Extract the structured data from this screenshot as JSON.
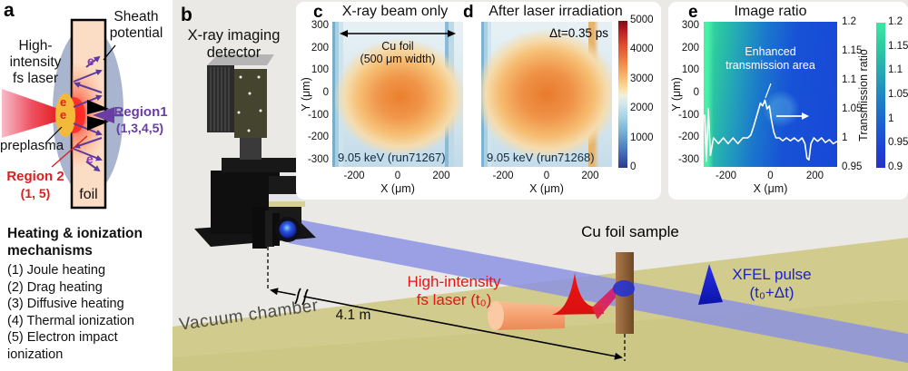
{
  "colors": {
    "laser_red": "#e01818",
    "xfel_blue": "#1a22cc",
    "region1_purple": "#6a3da6",
    "region2_red": "#d92020",
    "floor_khaki": "#d2cb8e",
    "beam_periwinkle": "#8a90e4",
    "scene_gray": "#eae9e6"
  },
  "panel_a": {
    "letter": "a",
    "laser_label": "High-\nintensity\nfs laser",
    "sheath_label": "Sheath\npotential",
    "region1_label": "Region1",
    "region1_sub": "(1,3,4,5)",
    "preplasma_label": "preplasma",
    "region2_label": "Region 2",
    "region2_sub": "(1, 5)",
    "foil_label": "foil",
    "electron_symbol": "e",
    "mechanisms_title": "Heating & ionization\nmechanisms",
    "mechanisms": [
      "(1) Joule heating",
      "(2) Drag heating",
      "(3) Diffusive heating",
      "(4) Thermal ionization",
      "(5) Electron impact ionization"
    ]
  },
  "panel_b": {
    "letter": "b",
    "detector_label": "X-ray imaging\ndetector",
    "vacuum_label": "Vacuum chamber",
    "distance_label": "4.1 m",
    "laser_label": "High-intensity\nfs laser (t₀)",
    "foil_label": "Cu foil sample",
    "xfel_label": "XFEL pulse\n(t₀+Δt)"
  },
  "panel_c": {
    "letter": "c",
    "title": "X-ray beam only",
    "foil_note_line1": "Cu foil",
    "foil_note_line2": "(500 μm width)",
    "run_label": "9.05 keV  (run71267)",
    "xlabel": "X (μm)",
    "ylabel": "Y (μm)"
  },
  "panel_d": {
    "letter": "d",
    "title": "After laser irradiation",
    "delay_label": "Δt=0.35 ps",
    "run_label": "9.05 keV  (run71268)",
    "xlabel": "X (μm)"
  },
  "panel_e": {
    "letter": "e",
    "title": "Image ratio",
    "annotation": "Enhanced\ntransmission area",
    "right_axis_label": "Transmission ratio",
    "xlabel": "X (μm)",
    "ylabel": "Y (μm)"
  },
  "chart_data": [
    {
      "id": "c",
      "type": "heatmap",
      "title": "X-ray beam only",
      "xlabel": "X (μm)",
      "ylabel": "Y (μm)",
      "xlim": [
        -300,
        300
      ],
      "ylim": [
        -300,
        300
      ],
      "xticks": [
        -200,
        0,
        200
      ],
      "yticks": [
        300,
        200,
        100,
        0,
        -100,
        -200,
        -300
      ],
      "value_range": [
        0,
        5000
      ],
      "colorbar_ticks": [
        5000,
        4000,
        3000,
        2000,
        1000,
        0
      ],
      "annotations": [
        "Cu foil (500 μm width)",
        "9.05 keV  (run71267)"
      ],
      "summary": "X-ray beam profile: warm high-count blob (~3500-4500) centered near (0,-50) spanning roughly ±250 μm; cool blue vertical bands at the Cu foil edges near x = -250 and x = +230 μm; background ~1500-2500 counts."
    },
    {
      "id": "d",
      "type": "heatmap",
      "title": "After laser irradiation",
      "xlabel": "X (μm)",
      "ylabel": "Y (μm)",
      "xlim": [
        -300,
        300
      ],
      "ylim": [
        -300,
        300
      ],
      "xticks": [
        -200,
        0,
        200
      ],
      "yticks": [
        300,
        200,
        100,
        0,
        -100,
        -200,
        -300
      ],
      "value_range": [
        0,
        5000
      ],
      "colorbar_ticks": [
        5000,
        4000,
        3000,
        2000,
        1000,
        0
      ],
      "annotations": [
        "Δt=0.35 ps",
        "9.05 keV  (run71268)"
      ],
      "summary": "Same beam viewed 0.35 ps after laser irradiation; warm blob slightly broader, foil edge bands still visible."
    },
    {
      "id": "e",
      "type": "heatmap",
      "title": "Image ratio",
      "xlabel": "X (μm)",
      "ylabel": "Y (μm)",
      "xlim": [
        -300,
        300
      ],
      "ylim": [
        -300,
        300
      ],
      "xticks": [
        -200,
        0,
        200
      ],
      "yticks": [
        300,
        200,
        100,
        0,
        -100,
        -200,
        -300
      ],
      "value_range": [
        0.9,
        1.2
      ],
      "colorbar_label": "Transmission ratio",
      "colorbar_ticks": [
        1.2,
        1.15,
        1.1,
        1.05,
        1,
        0.95,
        0.9
      ],
      "right_axis_ticks": [
        1.2,
        1.15,
        1.1,
        1.05,
        1,
        0.95
      ],
      "right_axis_range": [
        0.95,
        1.2
      ],
      "annotations": [
        "Enhanced transmission area"
      ],
      "summary": "Ratio of panels d/c: greenish (~1.05-1.1) near left edge fading to blue (~1.0); faint enhanced-transmission spot near (30,-50); overlaid white lineout of transmission ratio vs X read on the right axis.",
      "profile": {
        "x": [
          -296,
          -288,
          -279,
          -270,
          -256,
          -234,
          -212,
          -190,
          -168,
          -146,
          -124,
          -102,
          -88,
          -75,
          -60,
          -45,
          -35,
          -25,
          -15,
          -5,
          5,
          15,
          25,
          40,
          55,
          72,
          90,
          107,
          125,
          142,
          155,
          164,
          173,
          182,
          195,
          212,
          230,
          247,
          265,
          282,
          300
        ],
        "ratio": [
          1.04,
          0.96,
          1.05,
          0.97,
          1.0,
          0.99,
          1.0,
          0.99,
          1.0,
          0.99,
          1.0,
          1.0,
          1.005,
          1.02,
          1.04,
          1.06,
          1.055,
          1.065,
          1.05,
          1.055,
          1.03,
          1.01,
          1.0,
          1.0,
          0.995,
          1.0,
          0.995,
          1.0,
          0.994,
          1.0,
          0.99,
          0.965,
          0.962,
          0.99,
          1.0,
          0.994,
          1.0,
          0.992,
          0.997,
          0.99,
          0.994
        ]
      }
    }
  ]
}
